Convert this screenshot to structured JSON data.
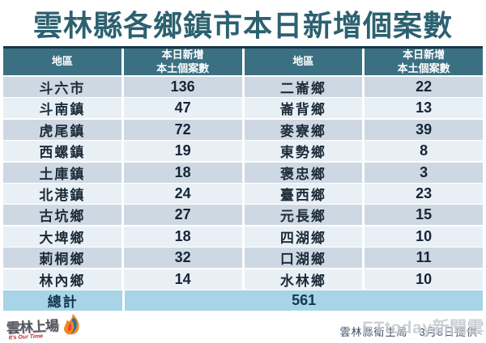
{
  "title": "雲林縣各鄉鎮市本日新增個案數",
  "table": {
    "headers": [
      "地區",
      "本日新增\n本土個案數",
      "地區",
      "本日新增\n本土個案數"
    ],
    "display_rows": [
      [
        "斗六市",
        "136",
        "二崙鄉",
        "22"
      ],
      [
        "斗南鎮",
        "47",
        "崙背鄉",
        "13"
      ],
      [
        "虎尾鎮",
        "72",
        "麥寮鄉",
        "39"
      ],
      [
        "西螺鎮",
        "19",
        "東勢鄉",
        "8"
      ],
      [
        "土庫鎮",
        "18",
        "褒忠鄉",
        "3"
      ],
      [
        "北港鎮",
        "24",
        "臺西鄉",
        "23"
      ],
      [
        "古坑鄉",
        "27",
        "元長鄉",
        "15"
      ],
      [
        "大埤鄉",
        "18",
        "四湖鄉",
        "10"
      ],
      [
        "莿桐鄉",
        "32",
        "口湖鄉",
        "11"
      ],
      [
        "林內鄉",
        "14",
        "水林鄉",
        "10"
      ]
    ],
    "total_label": "總計",
    "total_value": "561"
  },
  "footer": {
    "logo_text": "雲林上場",
    "logo_subtext": "It's Our Time",
    "caption": "雲林縣衛生局　3月8日提供",
    "watermark": "ETtoday新聞雲"
  },
  "colors": {
    "title": "#2c6170",
    "header_bg": "#3b7082",
    "header_top_border": "#17364a",
    "row_odd": "#cdd8e3",
    "row_even": "#e9f0f5",
    "total_row_bg": "#a7d4e7",
    "body_text": "#152536",
    "caption_text": "#3c4c66",
    "watermark_gray": "#c3c8ce",
    "logo_red": "#c0272d",
    "flame_orange": "#f08a1e",
    "flame_blue": "#2a6fb0"
  },
  "chart_data": {
    "type": "table",
    "title": "雲林縣各鄉鎮市本日新增個案數",
    "columns": [
      "地區",
      "本日新增本土個案數"
    ],
    "rows": [
      [
        "斗六市",
        136
      ],
      [
        "斗南鎮",
        47
      ],
      [
        "虎尾鎮",
        72
      ],
      [
        "西螺鎮",
        19
      ],
      [
        "土庫鎮",
        18
      ],
      [
        "北港鎮",
        24
      ],
      [
        "古坑鄉",
        27
      ],
      [
        "大埤鄉",
        18
      ],
      [
        "莿桐鄉",
        32
      ],
      [
        "林內鄉",
        14
      ],
      [
        "二崙鄉",
        22
      ],
      [
        "崙背鄉",
        13
      ],
      [
        "麥寮鄉",
        39
      ],
      [
        "東勢鄉",
        8
      ],
      [
        "褒忠鄉",
        3
      ],
      [
        "臺西鄉",
        23
      ],
      [
        "元長鄉",
        15
      ],
      [
        "四湖鄉",
        10
      ],
      [
        "口湖鄉",
        11
      ],
      [
        "水林鄉",
        10
      ]
    ],
    "total": {
      "label": "總計",
      "value": 561
    },
    "layout": "two-column table, 10 townships per side, merged total row at bottom"
  }
}
